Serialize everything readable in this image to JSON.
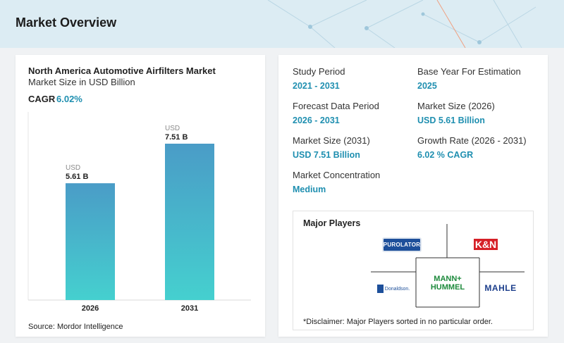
{
  "header": {
    "title": "Market Overview"
  },
  "chart_card": {
    "title": "North America Automotive Airfilters Market",
    "subtitle": "Market Size in USD Billion",
    "cagr_label": "CAGR",
    "cagr_value": "6.02%",
    "source": "Source: Mordor Intelligence"
  },
  "chart_data": {
    "type": "bar",
    "categories": [
      "2026",
      "2031"
    ],
    "values": [
      5.61,
      7.51
    ],
    "value_labels": [
      "5.61 B",
      "7.51 B"
    ],
    "unit_label": "USD",
    "title": "North America Automotive Airfilters Market",
    "subtitle": "Market Size in USD Billion",
    "xlabel": "",
    "ylabel": "",
    "grid": false,
    "bar_gradient": [
      "#4a9cc7",
      "#45d0cf"
    ]
  },
  "stats": {
    "study_period": {
      "label": "Study Period",
      "value": "2021 - 2031"
    },
    "base_year": {
      "label": "Base Year For Estimation",
      "value": "2025"
    },
    "forecast_period": {
      "label": "Forecast Data Period",
      "value": "2026 - 2031"
    },
    "market_size_2026": {
      "label": "Market Size (2026)",
      "value": "USD 5.61 Billion"
    },
    "market_size_2031": {
      "label": "Market Size (2031)",
      "value": "USD 7.51 Billion"
    },
    "growth_rate": {
      "label": "Growth Rate (2026 - 2031)",
      "value": "6.02 % CAGR"
    },
    "concentration": {
      "label": "Market Concentration",
      "value": "Medium"
    }
  },
  "players": {
    "title": "Major Players",
    "logos": {
      "purolator": "PUROLATOR",
      "kn": "K&N",
      "mann_line1": "MANN+",
      "mann_line2": "HUMMEL",
      "donaldson": "Donaldson.",
      "mahle": "MAHLE"
    },
    "disclaimer": "*Disclaimer: Major Players sorted in no particular order."
  },
  "colors": {
    "accent": "#1f8fb0",
    "header_bg": "#dcecf3",
    "page_bg": "#f0f2f4"
  }
}
